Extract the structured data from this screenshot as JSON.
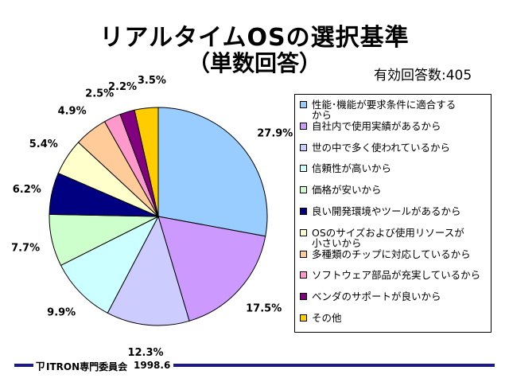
{
  "header": {
    "title": "リアルタイムOSの選択基準",
    "subtitle": "（単数回答）",
    "respondents": "有効回答数:405"
  },
  "chart_data": {
    "type": "pie",
    "start": "12 o'clock",
    "direction": "clockwise",
    "legend_position": "right",
    "slices": [
      {
        "label": "性能･機能が要求条件に適合するから",
        "value": 27.9,
        "value_label": "27.9%",
        "color": "#99ccff"
      },
      {
        "label": "自社内で使用実績があるから",
        "value": 17.5,
        "value_label": "17.5%",
        "color": "#cc99ff"
      },
      {
        "label": "世の中で多く使われているから",
        "value": 12.3,
        "value_label": "12.3%",
        "color": "#ccccff"
      },
      {
        "label": "信頼性が高いから",
        "value": 9.9,
        "value_label": "9.9%",
        "color": "#ccffff"
      },
      {
        "label": "価格が安いから",
        "value": 7.7,
        "value_label": "7.7%",
        "color": "#ccffcc"
      },
      {
        "label": "良い開発環境やツールがあるから",
        "value": 6.2,
        "value_label": "6.2%",
        "color": "#000080"
      },
      {
        "label": "OSのサイズおよび使用リソースが小さいから",
        "value": 5.4,
        "value_label": "5.4%",
        "color": "#ffffcc"
      },
      {
        "label": "多種類のチップに対応しているから",
        "value": 4.9,
        "value_label": "4.9%",
        "color": "#ffcc99"
      },
      {
        "label": "ソフトウェア部品が充実しているから",
        "value": 2.5,
        "value_label": "2.5%",
        "color": "#ff99cc"
      },
      {
        "label": "ベンダのサポートが良いから",
        "value": 2.2,
        "value_label": "2.2%",
        "color": "#800080"
      },
      {
        "label": "その他",
        "value": 3.5,
        "value_label": "3.5%",
        "color": "#ffcc00"
      }
    ]
  },
  "legend": {
    "items": [
      {
        "line1": "性能･機能が要求条件に適合する",
        "line2": "から"
      },
      {
        "line1": "自社内で使用実績があるから",
        "line2": ""
      },
      {
        "line1": "世の中で多く使われているから",
        "line2": ""
      },
      {
        "line1": "信頼性が高いから",
        "line2": ""
      },
      {
        "line1": "価格が安いから",
        "line2": ""
      },
      {
        "line1": "良い開発環境やツールがあるから",
        "line2": ""
      },
      {
        "line1": "OSのサイズおよび使用リソースが",
        "line2": "小さいから"
      },
      {
        "line1": "多種類のチップに対応しているから",
        "line2": ""
      },
      {
        "line1": "ソフトウェア部品が充実しているから",
        "line2": ""
      },
      {
        "line1": "ベンダのサポートが良いから",
        "line2": ""
      },
      {
        "line1": "その他",
        "line2": ""
      }
    ]
  },
  "footer": {
    "logo_glyph": "ㄗ",
    "org": "ITRON専門委員会",
    "date": "1998.6",
    "line_color": "#1a1a8c"
  }
}
